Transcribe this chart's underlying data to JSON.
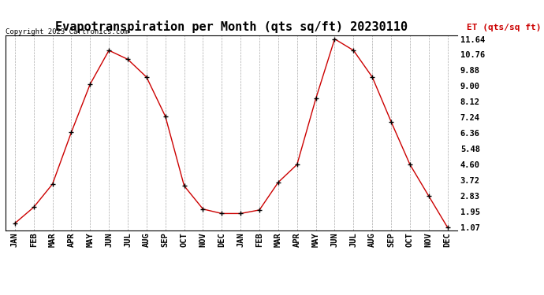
{
  "title": "Evapotranspiration per Month (qts sq/ft) 20230110",
  "copyright": "Copyright 2023 Cartronics.com",
  "legend_label": "ET (qts/sq ft)",
  "months": [
    "JAN",
    "FEB",
    "MAR",
    "APR",
    "MAY",
    "JUN",
    "JUL",
    "AUG",
    "SEP",
    "OCT",
    "NOV",
    "DEC",
    "JAN",
    "FEB",
    "MAR",
    "APR",
    "MAY",
    "JUN",
    "JUL",
    "AUG",
    "SEP",
    "OCT",
    "NOV",
    "DEC"
  ],
  "values": [
    1.3,
    2.2,
    3.5,
    6.4,
    9.1,
    11.0,
    10.5,
    9.5,
    7.3,
    3.4,
    2.1,
    1.85,
    1.85,
    2.05,
    3.6,
    4.6,
    8.3,
    11.64,
    11.0,
    9.5,
    7.0,
    4.6,
    2.83,
    1.07
  ],
  "yticks": [
    1.07,
    1.95,
    2.83,
    3.72,
    4.6,
    5.48,
    6.36,
    7.24,
    8.12,
    9.0,
    9.88,
    10.76,
    11.64
  ],
  "ylim_min": 1.07,
  "ylim_max": 11.64,
  "line_color": "#cc0000",
  "marker_color": "#000000",
  "background_color": "#ffffff",
  "grid_color": "#aaaaaa",
  "title_fontsize": 11,
  "tick_fontsize": 7.5,
  "copyright_fontsize": 6.5,
  "legend_fontsize": 8,
  "legend_color": "#cc0000"
}
